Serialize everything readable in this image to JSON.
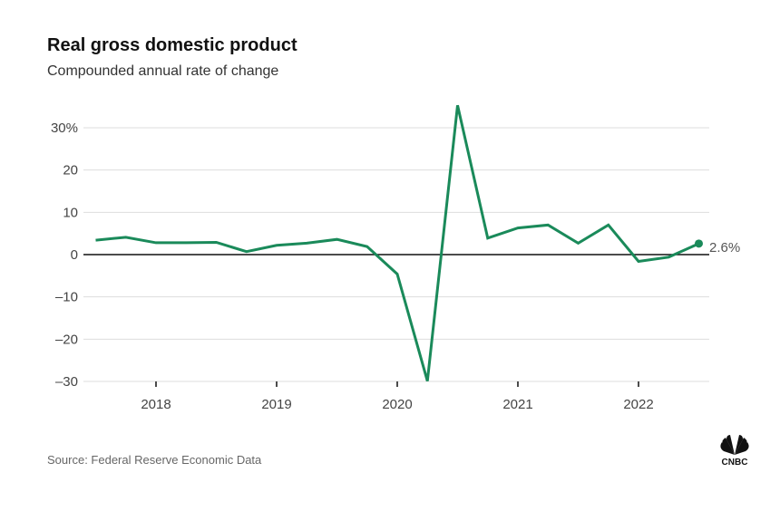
{
  "chart_data": {
    "type": "line",
    "title": "Real gross domestic product",
    "subtitle": "Compounded annual rate of change",
    "source": "Source: Federal Reserve Economic Data",
    "logo": "CNBC",
    "ylim": [
      -30,
      35
    ],
    "xlim": [
      "2017-Q3",
      "2022-Q3"
    ],
    "y_ticks": [
      {
        "value": 30,
        "label": "30%"
      },
      {
        "value": 20,
        "label": "20"
      },
      {
        "value": 10,
        "label": "10"
      },
      {
        "value": 0,
        "label": "0"
      },
      {
        "value": -10,
        "label": "–10"
      },
      {
        "value": -20,
        "label": "–20"
      },
      {
        "value": -30,
        "label": "–30"
      }
    ],
    "x_ticks": [
      {
        "value": 2018,
        "label": "2018"
      },
      {
        "value": 2019,
        "label": "2019"
      },
      {
        "value": 2020,
        "label": "2020"
      },
      {
        "value": 2021,
        "label": "2021"
      },
      {
        "value": 2022,
        "label": "2022"
      }
    ],
    "grid": true,
    "line_color": "#1a8a5a",
    "x": [
      "2017-Q3",
      "2017-Q4",
      "2018-Q1",
      "2018-Q2",
      "2018-Q3",
      "2018-Q4",
      "2019-Q1",
      "2019-Q2",
      "2019-Q3",
      "2019-Q4",
      "2020-Q1",
      "2020-Q2",
      "2020-Q3",
      "2020-Q4",
      "2021-Q1",
      "2021-Q2",
      "2021-Q3",
      "2021-Q4",
      "2022-Q1",
      "2022-Q2",
      "2022-Q3"
    ],
    "values": [
      3.4,
      4.1,
      2.8,
      2.8,
      2.9,
      0.7,
      2.2,
      2.7,
      3.6,
      1.9,
      -4.6,
      -29.9,
      35.3,
      3.9,
      6.3,
      7.0,
      2.7,
      7.0,
      -1.6,
      -0.6,
      2.6
    ],
    "end_label": "2.6%"
  }
}
